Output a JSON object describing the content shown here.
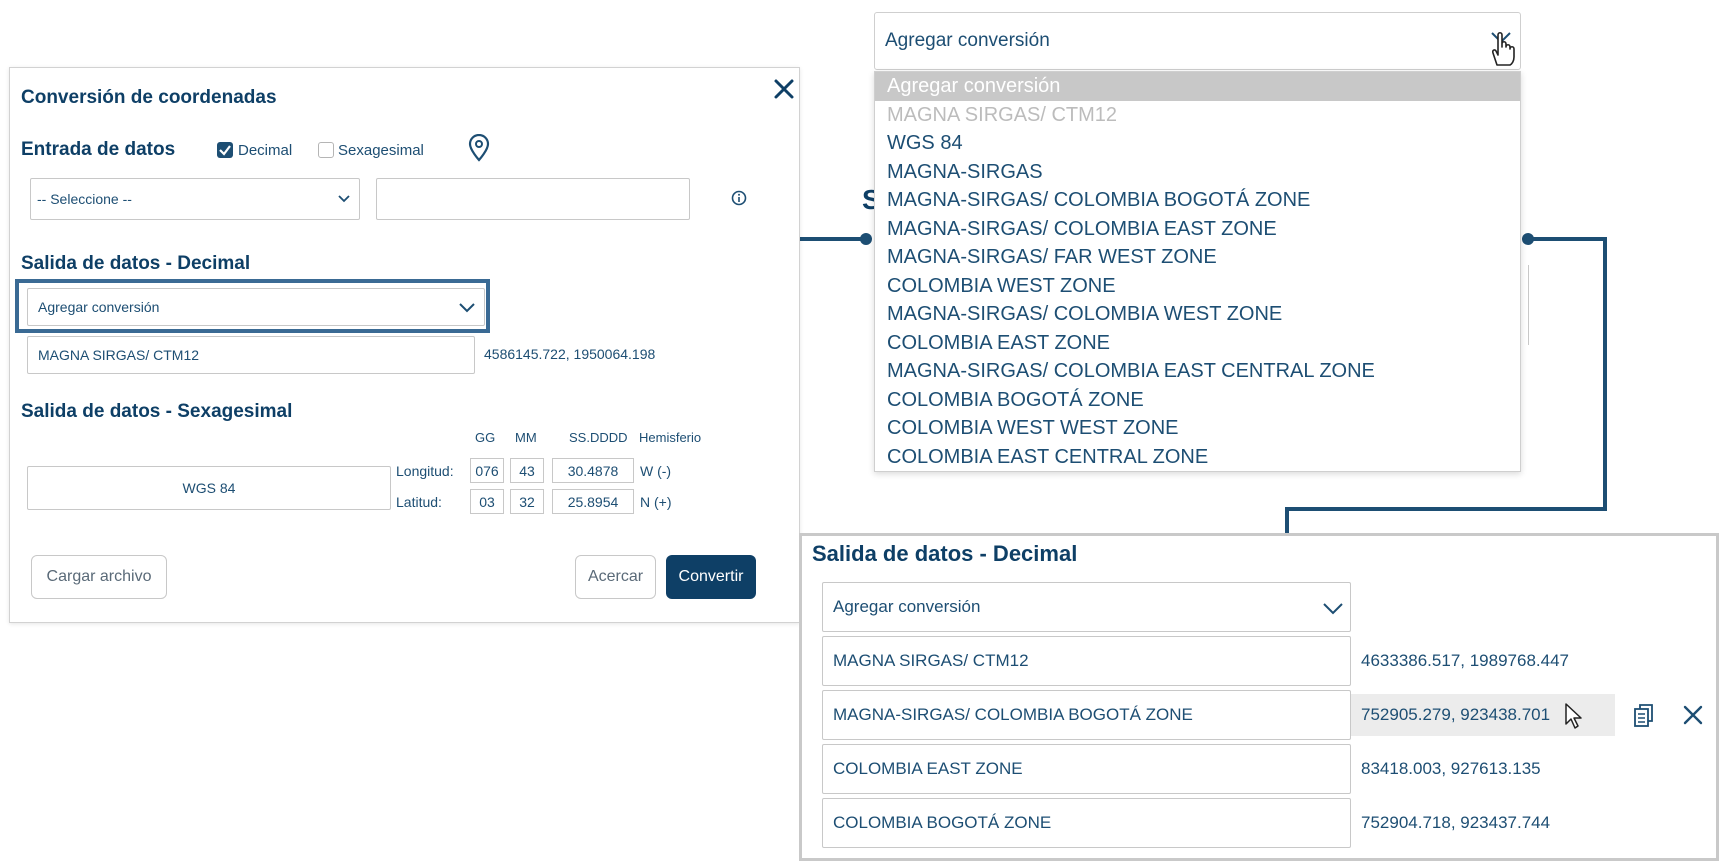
{
  "panel": {
    "title": "Conversión de coordenadas",
    "input_section": "Entrada de datos",
    "decimal_label": "Decimal",
    "sexagesimal_label": "Sexagesimal",
    "select_placeholder": "-- Seleccione --",
    "output_decimal_title": "Salida de datos - Decimal",
    "add_conversion": "Agregar conversión",
    "decimal_row": {
      "system": "MAGNA SIRGAS/ CTM12",
      "value": "4586145.722, 1950064.198"
    },
    "output_sexagesimal_title": "Salida de datos - Sexagesimal",
    "headers": {
      "gg": "GG",
      "mm": "MM",
      "ss": "SS.DDDD",
      "hem": "Hemisferio"
    },
    "sexagesimal_system": "WGS 84",
    "longitude": {
      "label": "Longitud:",
      "gg": "076",
      "mm": "43",
      "ss": "30.4878",
      "hem": "W (-)"
    },
    "latitude": {
      "label": "Latitud:",
      "gg": "03",
      "mm": "32",
      "ss": "25.8954",
      "hem": "N (+)"
    },
    "load_file": "Cargar archivo",
    "zoom_btn": "Acercar",
    "convert_btn": "Convertir"
  },
  "dropdown": {
    "value": "Agregar conversión",
    "options": [
      "Agregar conversión",
      "MAGNA SIRGAS/ CTM12",
      "WGS 84",
      "MAGNA-SIRGAS",
      "MAGNA-SIRGAS/ COLOMBIA BOGOTÁ ZONE",
      "MAGNA-SIRGAS/ COLOMBIA EAST ZONE",
      "MAGNA-SIRGAS/ FAR WEST ZONE",
      "COLOMBIA WEST ZONE",
      "MAGNA-SIRGAS/ COLOMBIA WEST ZONE",
      "COLOMBIA EAST ZONE",
      "MAGNA-SIRGAS/ COLOMBIA EAST CENTRAL ZONE",
      "COLOMBIA BOGOTÁ ZONE",
      "COLOMBIA WEST WEST ZONE",
      "COLOMBIA EAST CENTRAL ZONE"
    ]
  },
  "zoom": {
    "title": "Salida de datos - Decimal",
    "add_conversion": "Agregar conversión",
    "rows": [
      {
        "system": "MAGNA SIRGAS/ CTM12",
        "value": "4633386.517, 1989768.447"
      },
      {
        "system": "MAGNA-SIRGAS/ COLOMBIA BOGOTÁ ZONE",
        "value": "752905.279, 923438.701"
      },
      {
        "system": "COLOMBIA EAST ZONE",
        "value": "83418.003, 927613.135"
      },
      {
        "system": "COLOMBIA BOGOTÁ ZONE",
        "value": "752904.718, 923437.744"
      }
    ]
  },
  "colors": {
    "primary": "#0e3f66",
    "text": "#1d4e73",
    "highlight": "#3a6a94",
    "connector": "#1d4e73"
  }
}
